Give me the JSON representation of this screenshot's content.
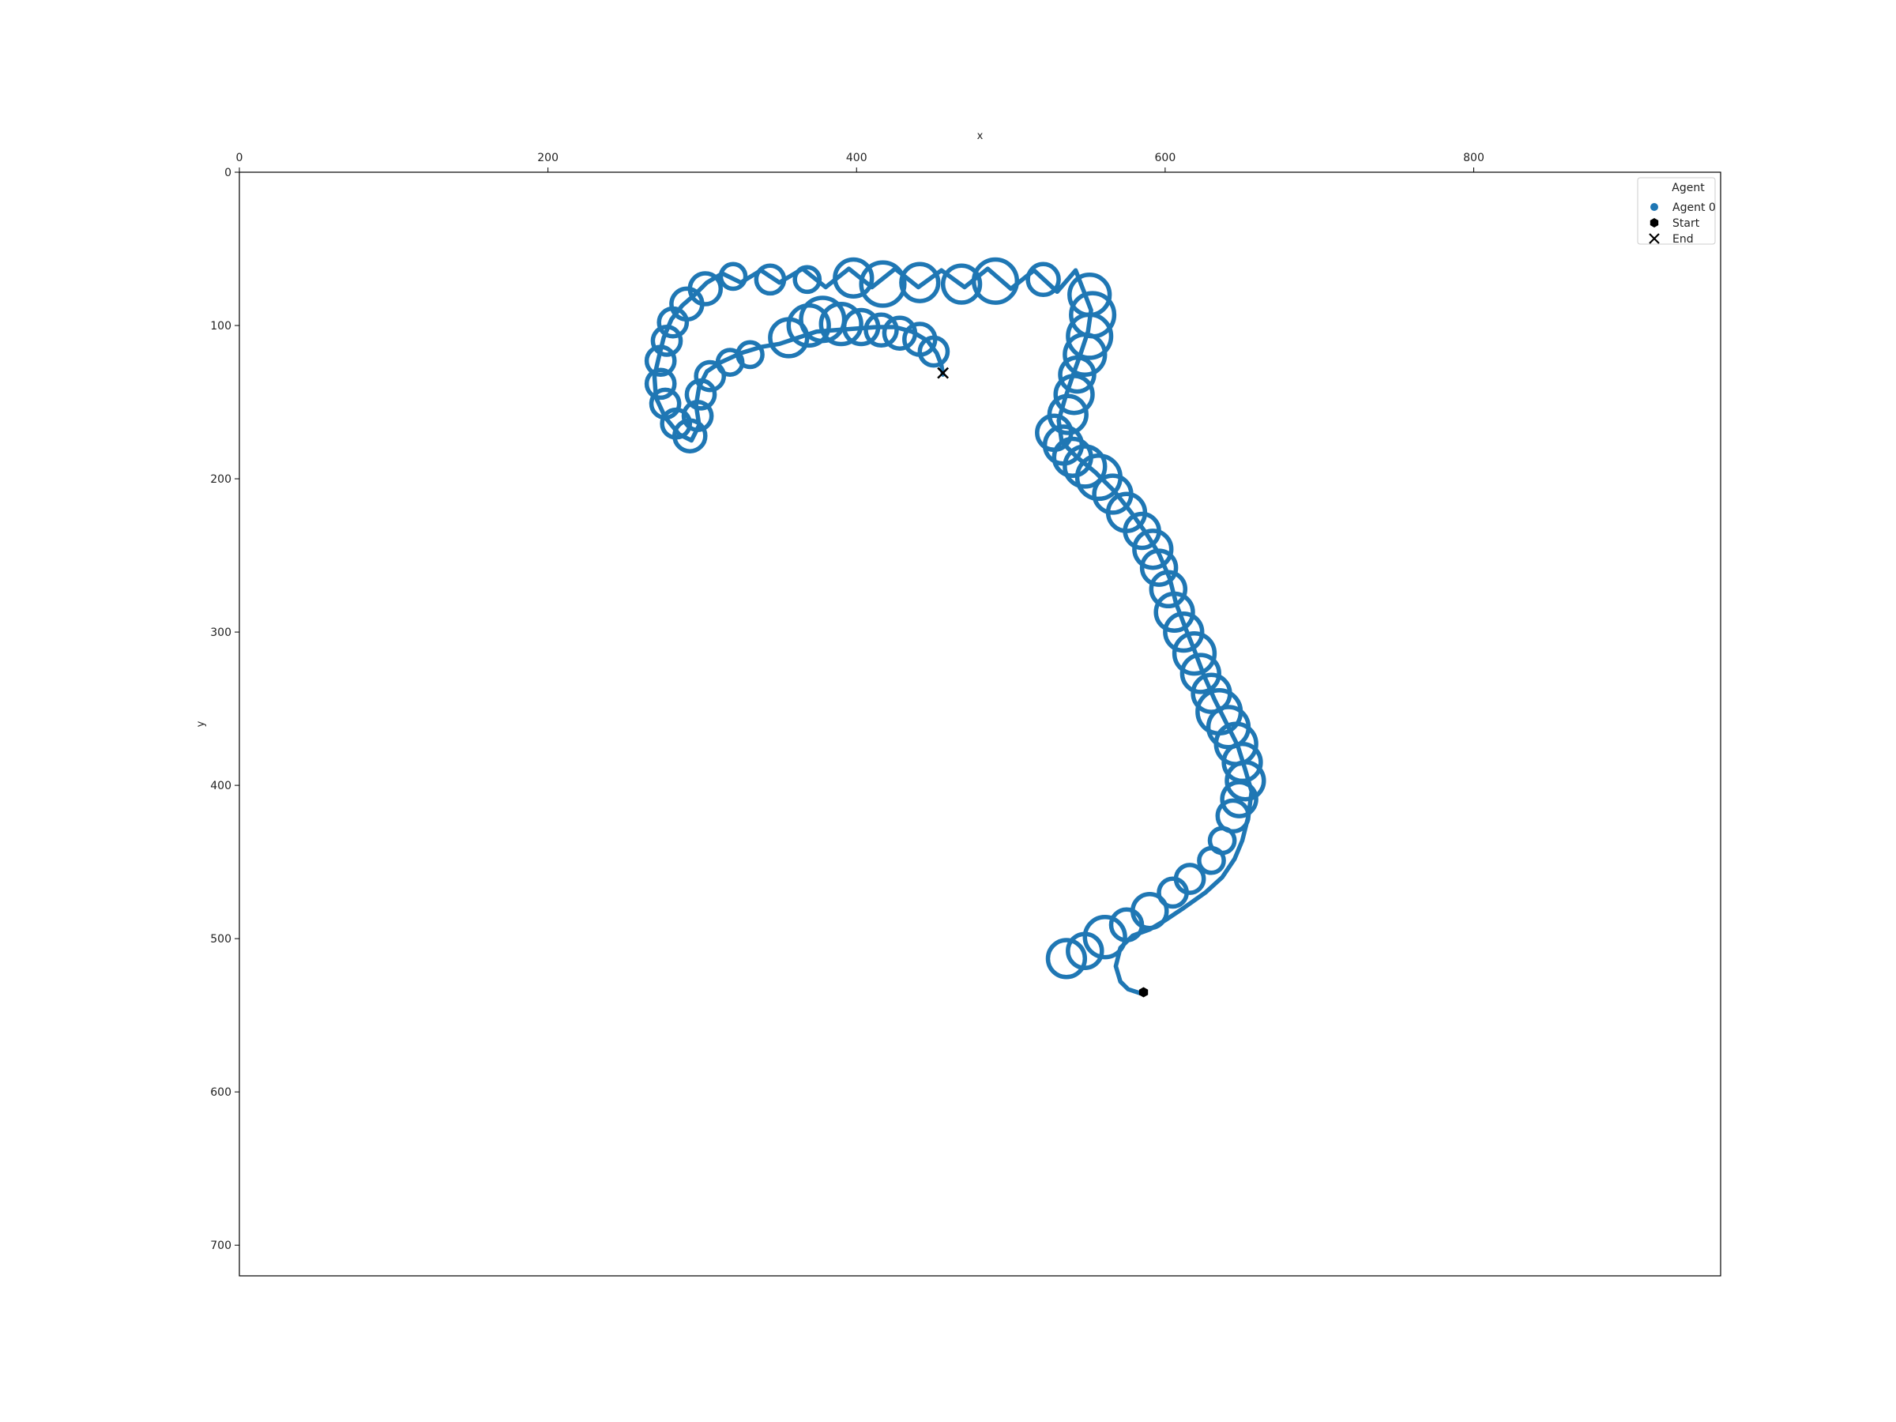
{
  "chart_data": {
    "type": "scatter",
    "title": "",
    "xlabel": "x",
    "ylabel": "y",
    "xlim": [
      0,
      960
    ],
    "ylim": [
      720,
      0
    ],
    "x_axis_position": "top",
    "y_inverted": true,
    "grid": false,
    "xticks": [
      0,
      200,
      400,
      600,
      800
    ],
    "yticks": [
      0,
      100,
      200,
      300,
      400,
      500,
      600,
      700
    ],
    "legend": {
      "title": "Agent",
      "placement": "top-right",
      "entries": [
        {
          "label": "Agent 0",
          "marker": "circle",
          "color": "#1f77b4"
        },
        {
          "label": "Start",
          "marker": "hexagon",
          "color": "#000000"
        },
        {
          "label": "End",
          "marker": "x",
          "color": "#000000"
        }
      ]
    },
    "series": [
      {
        "name": "Agent 0",
        "color": "#1f77b4",
        "path": [
          [
            585,
            536
          ],
          [
            576,
            533
          ],
          [
            571,
            528
          ],
          [
            568,
            518
          ],
          [
            571,
            506
          ],
          [
            579,
            498
          ],
          [
            590,
            494
          ],
          [
            600,
            488
          ],
          [
            612,
            480
          ],
          [
            626,
            470
          ],
          [
            637,
            460
          ],
          [
            645,
            448
          ],
          [
            650,
            436
          ],
          [
            654,
            420
          ],
          [
            656,
            404
          ],
          [
            652,
            390
          ],
          [
            647,
            374
          ],
          [
            640,
            360
          ],
          [
            632,
            344
          ],
          [
            625,
            328
          ],
          [
            619,
            312
          ],
          [
            613,
            297
          ],
          [
            607,
            281
          ],
          [
            603,
            265
          ],
          [
            596,
            249
          ],
          [
            588,
            236
          ],
          [
            578,
            222
          ],
          [
            567,
            208
          ],
          [
            555,
            196
          ],
          [
            543,
            186
          ],
          [
            533,
            176
          ],
          [
            531,
            162
          ],
          [
            535,
            148
          ],
          [
            540,
            133
          ],
          [
            545,
            119
          ],
          [
            550,
            104
          ],
          [
            552,
            90
          ],
          [
            547,
            77
          ],
          [
            542,
            64
          ],
          [
            530,
            78
          ],
          [
            515,
            64
          ],
          [
            500,
            76
          ],
          [
            485,
            63
          ],
          [
            470,
            75
          ],
          [
            455,
            64
          ],
          [
            440,
            75
          ],
          [
            425,
            63
          ],
          [
            410,
            75
          ],
          [
            395,
            63
          ],
          [
            380,
            75
          ],
          [
            365,
            63
          ],
          [
            350,
            72
          ],
          [
            338,
            64
          ],
          [
            325,
            72
          ],
          [
            313,
            66
          ],
          [
            303,
            72
          ],
          [
            295,
            80
          ],
          [
            287,
            87
          ],
          [
            280,
            96
          ],
          [
            275,
            108
          ],
          [
            272,
            120
          ],
          [
            269,
            133
          ],
          [
            270,
            147
          ],
          [
            276,
            160
          ],
          [
            285,
            171
          ],
          [
            293,
            175
          ],
          [
            298,
            165
          ],
          [
            296,
            152
          ],
          [
            298,
            140
          ],
          [
            303,
            130
          ],
          [
            312,
            124
          ],
          [
            325,
            118
          ],
          [
            338,
            114
          ],
          [
            350,
            112
          ],
          [
            362,
            108
          ],
          [
            374,
            104
          ],
          [
            387,
            103
          ],
          [
            400,
            102
          ],
          [
            413,
            101
          ],
          [
            425,
            101
          ],
          [
            436,
            104
          ],
          [
            446,
            110
          ],
          [
            452,
            118
          ],
          [
            455,
            126
          ],
          [
            456,
            132
          ]
        ],
        "loops": [
          [
            536,
            513,
            12
          ],
          [
            548,
            508,
            11
          ],
          [
            561,
            499,
            13
          ],
          [
            575,
            491,
            10
          ],
          [
            590,
            482,
            11
          ],
          [
            605,
            470,
            9
          ],
          [
            616,
            461,
            9
          ],
          [
            630,
            449,
            8
          ],
          [
            637,
            436,
            8
          ],
          [
            644,
            420,
            10
          ],
          [
            648,
            409,
            11
          ],
          [
            652,
            397,
            12
          ],
          [
            650,
            385,
            12
          ],
          [
            646,
            373,
            13
          ],
          [
            641,
            362,
            13
          ],
          [
            635,
            352,
            14
          ],
          [
            630,
            340,
            12
          ],
          [
            623,
            327,
            12
          ],
          [
            619,
            314,
            13
          ],
          [
            612,
            300,
            12
          ],
          [
            606,
            287,
            12
          ],
          [
            602,
            272,
            11
          ],
          [
            596,
            258,
            11
          ],
          [
            592,
            246,
            12
          ],
          [
            585,
            234,
            11
          ],
          [
            575,
            222,
            12
          ],
          [
            566,
            210,
            12
          ],
          [
            557,
            199,
            14
          ],
          [
            548,
            192,
            13
          ],
          [
            540,
            186,
            12
          ],
          [
            534,
            178,
            12
          ],
          [
            528,
            170,
            11
          ],
          [
            537,
            158,
            12
          ],
          [
            541,
            145,
            12
          ],
          [
            543,
            132,
            11
          ],
          [
            548,
            119,
            13
          ],
          [
            551,
            107,
            14
          ],
          [
            553,
            93,
            14
          ],
          [
            551,
            80,
            13
          ],
          [
            521,
            70,
            10
          ],
          [
            490,
            71,
            14
          ],
          [
            468,
            73,
            12
          ],
          [
            441,
            72,
            12
          ],
          [
            417,
            73,
            14
          ],
          [
            398,
            69,
            12
          ],
          [
            368,
            70,
            8
          ],
          [
            344,
            70,
            9
          ],
          [
            320,
            68,
            8
          ],
          [
            302,
            76,
            10
          ],
          [
            290,
            86,
            10
          ],
          [
            281,
            98,
            9
          ],
          [
            277,
            110,
            9
          ],
          [
            273,
            123,
            9
          ],
          [
            273,
            138,
            9
          ],
          [
            276,
            151,
            9
          ],
          [
            283,
            164,
            9
          ],
          [
            292,
            172,
            10
          ],
          [
            297,
            159,
            9
          ],
          [
            299,
            145,
            9
          ],
          [
            305,
            133,
            9
          ],
          [
            318,
            124,
            8
          ],
          [
            331,
            119,
            8
          ],
          [
            356,
            108,
            12
          ],
          [
            369,
            100,
            13
          ],
          [
            378,
            96,
            14
          ],
          [
            390,
            99,
            13
          ],
          [
            403,
            101,
            11
          ],
          [
            416,
            103,
            10
          ],
          [
            428,
            105,
            10
          ],
          [
            441,
            109,
            10
          ],
          [
            450,
            117,
            9
          ]
        ]
      }
    ],
    "start": [
      586,
      535
    ],
    "end": [
      456,
      131
    ]
  }
}
